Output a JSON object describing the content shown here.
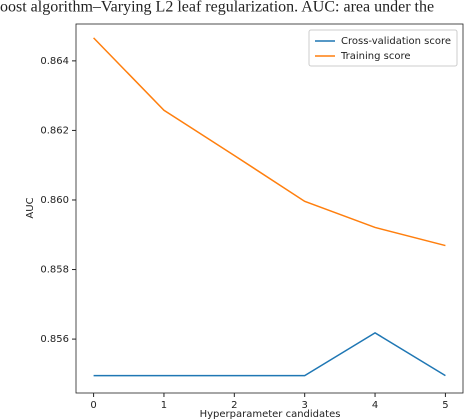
{
  "caption": "oost algorithm–Varying L2 leaf regularization. AUC: area under the",
  "chart_data": {
    "type": "line",
    "x": [
      0,
      1,
      2,
      3,
      4,
      5
    ],
    "series": [
      {
        "name": "Cross-validation score",
        "color": "#1f77b4",
        "values": [
          0.85495,
          0.85495,
          0.85495,
          0.85495,
          0.85618,
          0.85495
        ]
      },
      {
        "name": "Training score",
        "color": "#ff7f0e",
        "values": [
          0.86466,
          0.86258,
          0.86128,
          0.85996,
          0.85921,
          0.85869
        ]
      }
    ],
    "xlabel": "Hyperparameter candidates",
    "ylabel": "AUC",
    "xlim": [
      -0.25,
      5.25
    ],
    "xticks": [
      0,
      1,
      2,
      3,
      4,
      5
    ],
    "ylim": [
      0.85445,
      0.86506
    ],
    "yticks": [
      0.856,
      0.858,
      {
        "value": 0.86,
        "label": "0.860"
      },
      0.862,
      0.864
    ],
    "legend": "upper right"
  }
}
